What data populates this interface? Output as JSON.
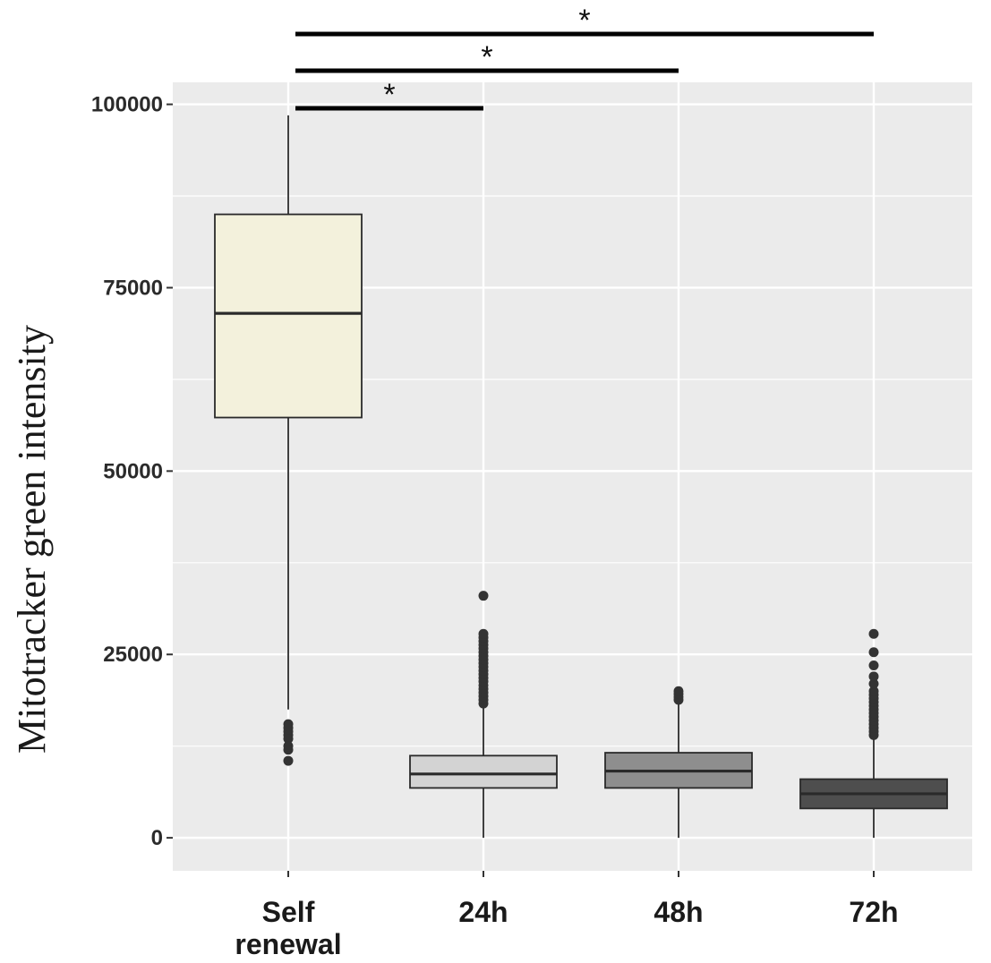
{
  "chart_data": {
    "type": "box",
    "title": "",
    "xlabel": "",
    "ylabel": "Mitotracker green intensity",
    "ylim": [
      -4500,
      103000
    ],
    "yticks": [
      0,
      25000,
      50000,
      75000,
      100000
    ],
    "ytick_labels": [
      "0",
      "25000",
      "50000",
      "75000",
      "100000"
    ],
    "grid": true,
    "categories": [
      {
        "label_lines": [
          "Self",
          "renewal"
        ],
        "fill": "#f3f1dc",
        "min": 17500,
        "q1": 57300,
        "median": 71500,
        "q3": 85000,
        "max": 98500,
        "outliers": [
          15500,
          15000,
          14500,
          14000,
          13500,
          12500,
          12000,
          10500
        ]
      },
      {
        "label_lines": [
          "24h"
        ],
        "fill": "#d3d3d3",
        "min": 0,
        "q1": 6800,
        "median": 8700,
        "q3": 11200,
        "max": 18000,
        "outliers": [
          18300,
          18800,
          19300,
          19800,
          20300,
          20800,
          21300,
          21800,
          22300,
          22800,
          23300,
          23800,
          24300,
          24800,
          25300,
          25800,
          26300,
          26800,
          27300,
          27800,
          33000
        ]
      },
      {
        "label_lines": [
          "48h"
        ],
        "fill": "#8e8e8e",
        "min": 0,
        "q1": 6800,
        "median": 9100,
        "q3": 11600,
        "max": 18600,
        "outliers": [
          18800,
          19200,
          19600,
          20000
        ]
      },
      {
        "label_lines": [
          "72h"
        ],
        "fill": "#4e4e4e",
        "min": 0,
        "q1": 4000,
        "median": 6000,
        "q3": 8000,
        "max": 13800,
        "outliers": [
          14000,
          14500,
          15000,
          15500,
          16000,
          16500,
          17000,
          17500,
          18000,
          18500,
          19000,
          19500,
          20000,
          21000,
          22000,
          23500,
          25300,
          27800
        ]
      }
    ],
    "significance": [
      {
        "from": 0,
        "to": 1,
        "label": "*"
      },
      {
        "from": 0,
        "to": 2,
        "label": "*"
      },
      {
        "from": 0,
        "to": 3,
        "label": "*"
      }
    ],
    "colors": {
      "panel": "#ebebeb",
      "grid": "#ffffff",
      "box_stroke": "#2a2a2a",
      "outlier": "#333333"
    }
  }
}
